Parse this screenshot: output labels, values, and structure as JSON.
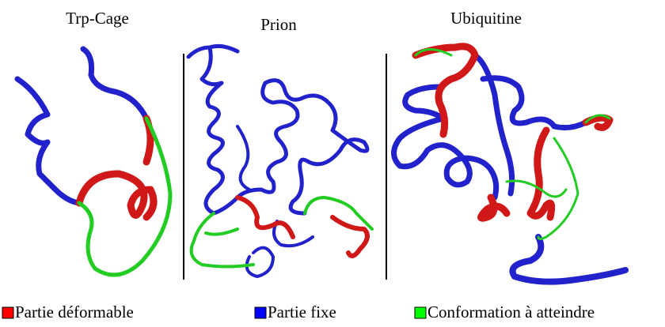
{
  "panels": [
    {
      "title": "Trp-Cage"
    },
    {
      "title": "Prion"
    },
    {
      "title": "Ubiquitine"
    }
  ],
  "legend": [
    {
      "label": "Partie déformable",
      "color": "#ff0000"
    },
    {
      "label": "Partie fixe",
      "color": "#0000ff"
    },
    {
      "label": "Conformation à atteindre",
      "color": "#00ff00"
    }
  ]
}
